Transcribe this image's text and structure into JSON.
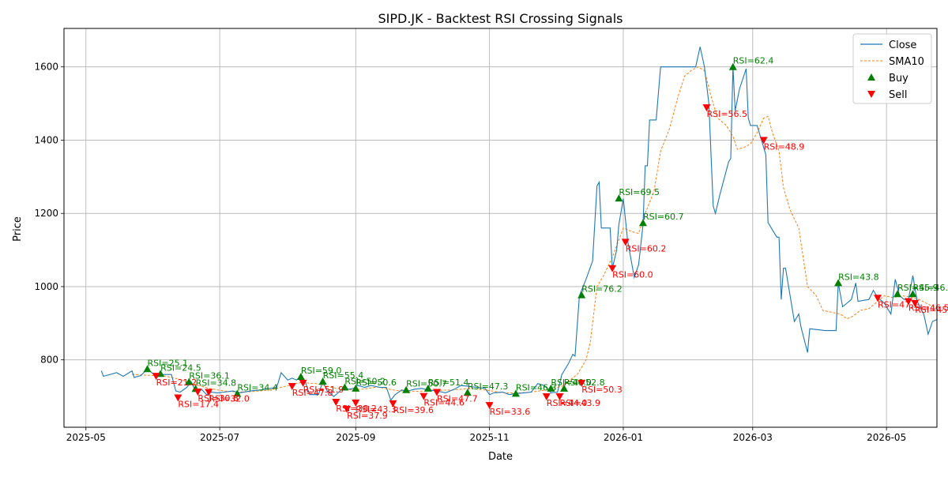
{
  "chart_data": {
    "type": "line",
    "title": "SIPD.JK - Backtest RSI Crossing Signals",
    "xlabel": "Date",
    "ylabel": "Price",
    "x_range": [
      "2025-04-21",
      "2026-05-24"
    ],
    "ylim": [
      616,
      1705
    ],
    "x_ticks": [
      {
        "date": "2025-05-01",
        "label": "2025-05"
      },
      {
        "date": "2025-07-01",
        "label": "2025-07"
      },
      {
        "date": "2025-09-01",
        "label": "2025-09"
      },
      {
        "date": "2025-11-01",
        "label": "2025-11"
      },
      {
        "date": "2026-01-01",
        "label": "2026-01"
      },
      {
        "date": "2026-03-01",
        "label": "2026-03"
      },
      {
        "date": "2026-05-01",
        "label": "2026-05"
      }
    ],
    "y_ticks": [
      800,
      1000,
      1200,
      1400,
      1600
    ],
    "grid": true,
    "legend": {
      "position": "top-right",
      "entries": [
        {
          "key": "close",
          "label": "Close"
        },
        {
          "key": "sma",
          "label": "SMA10"
        },
        {
          "key": "buy",
          "label": "Buy"
        },
        {
          "key": "sell",
          "label": "Sell"
        }
      ]
    },
    "colors": {
      "close": "#1f77b4",
      "sma": "#ff7f0e",
      "buy": "#008000",
      "sell": "#ff0000",
      "grid": "#b0b0b0"
    },
    "close": [
      [
        "2025-05-08",
        770
      ],
      [
        "2025-05-09",
        755
      ],
      [
        "2025-05-15",
        765
      ],
      [
        "2025-05-18",
        755
      ],
      [
        "2025-05-22",
        770
      ],
      [
        "2025-05-23",
        752
      ],
      [
        "2025-05-26",
        757
      ],
      [
        "2025-05-29",
        775
      ],
      [
        "2025-06-02",
        755
      ],
      [
        "2025-06-05",
        760
      ],
      [
        "2025-06-09",
        760
      ],
      [
        "2025-06-11",
        715
      ],
      [
        "2025-06-13",
        712
      ],
      [
        "2025-06-16",
        725
      ],
      [
        "2025-06-18",
        740
      ],
      [
        "2025-06-20",
        715
      ],
      [
        "2025-06-23",
        718
      ],
      [
        "2025-06-25",
        705
      ],
      [
        "2025-06-27",
        712
      ],
      [
        "2025-06-30",
        710
      ],
      [
        "2025-07-03",
        712
      ],
      [
        "2025-07-07",
        715
      ],
      [
        "2025-07-10",
        710
      ],
      [
        "2025-07-15",
        715
      ],
      [
        "2025-07-20",
        718
      ],
      [
        "2025-07-24",
        722
      ],
      [
        "2025-07-27",
        725
      ],
      [
        "2025-07-29",
        765
      ],
      [
        "2025-08-01",
        745
      ],
      [
        "2025-08-03",
        750
      ],
      [
        "2025-08-05",
        745
      ],
      [
        "2025-08-07",
        755
      ],
      [
        "2025-08-09",
        740
      ],
      [
        "2025-08-11",
        705
      ],
      [
        "2025-08-15",
        705
      ],
      [
        "2025-08-17",
        742
      ],
      [
        "2025-08-19",
        715
      ],
      [
        "2025-08-22",
        700
      ],
      [
        "2025-08-24",
        710
      ],
      [
        "2025-08-26",
        722
      ],
      [
        "2025-08-29",
        720
      ],
      [
        "2025-08-31",
        722
      ],
      [
        "2025-09-02",
        730
      ],
      [
        "2025-09-05",
        725
      ],
      [
        "2025-09-08",
        730
      ],
      [
        "2025-09-12",
        725
      ],
      [
        "2025-09-15",
        725
      ],
      [
        "2025-09-17",
        690
      ],
      [
        "2025-09-19",
        705
      ],
      [
        "2025-09-22",
        718
      ],
      [
        "2025-09-24",
        714
      ],
      [
        "2025-09-28",
        720
      ],
      [
        "2025-10-01",
        722
      ],
      [
        "2025-10-04",
        718
      ],
      [
        "2025-10-08",
        715
      ],
      [
        "2025-10-12",
        710
      ],
      [
        "2025-10-16",
        720
      ],
      [
        "2025-10-19",
        730
      ],
      [
        "2025-10-22",
        728
      ],
      [
        "2025-10-26",
        725
      ],
      [
        "2025-10-30",
        722
      ],
      [
        "2025-11-01",
        705
      ],
      [
        "2025-11-03",
        710
      ],
      [
        "2025-11-07",
        712
      ],
      [
        "2025-11-10",
        705
      ],
      [
        "2025-11-13",
        708
      ],
      [
        "2025-11-17",
        710
      ],
      [
        "2025-11-20",
        712
      ],
      [
        "2025-11-23",
        735
      ],
      [
        "2025-11-26",
        730
      ],
      [
        "2025-11-29",
        710
      ],
      [
        "2025-12-02",
        712
      ],
      [
        "2025-12-04",
        760
      ],
      [
        "2025-12-07",
        790
      ],
      [
        "2025-12-09",
        815
      ],
      [
        "2025-12-10",
        810
      ],
      [
        "2025-12-12",
        975
      ],
      [
        "2025-12-15",
        1020
      ],
      [
        "2025-12-18",
        1070
      ],
      [
        "2025-12-20",
        1275
      ],
      [
        "2025-12-21",
        1285
      ],
      [
        "2025-12-22",
        1160
      ],
      [
        "2025-12-26",
        1160
      ],
      [
        "2025-12-27",
        1050
      ],
      [
        "2025-12-29",
        1100
      ],
      [
        "2025-12-30",
        1170
      ],
      [
        "2026-01-01",
        1240
      ],
      [
        "2026-01-03",
        1125
      ],
      [
        "2026-01-06",
        1025
      ],
      [
        "2026-01-08",
        1060
      ],
      [
        "2026-01-10",
        1170
      ],
      [
        "2026-01-11",
        1330
      ],
      [
        "2026-01-12",
        1330
      ],
      [
        "2026-01-13",
        1455
      ],
      [
        "2026-01-16",
        1455
      ],
      [
        "2026-01-18",
        1600
      ],
      [
        "2026-01-22",
        1600
      ],
      [
        "2026-01-27",
        1600
      ],
      [
        "2026-02-01",
        1600
      ],
      [
        "2026-02-03",
        1600
      ],
      [
        "2026-02-05",
        1655
      ],
      [
        "2026-02-07",
        1600
      ],
      [
        "2026-02-09",
        1500
      ],
      [
        "2026-02-11",
        1220
      ],
      [
        "2026-02-12",
        1200
      ],
      [
        "2026-02-14",
        1250
      ],
      [
        "2026-02-18",
        1340
      ],
      [
        "2026-02-19",
        1350
      ],
      [
        "2026-02-20",
        1600
      ],
      [
        "2026-02-21",
        1480
      ],
      [
        "2026-02-23",
        1540
      ],
      [
        "2026-02-26",
        1595
      ],
      [
        "2026-02-27",
        1460
      ],
      [
        "2026-02-28",
        1440
      ],
      [
        "2026-03-03",
        1440
      ],
      [
        "2026-03-05",
        1400
      ],
      [
        "2026-03-07",
        1360
      ],
      [
        "2026-03-08",
        1175
      ],
      [
        "2026-03-12",
        1135
      ],
      [
        "2026-03-13",
        1135
      ],
      [
        "2026-03-14",
        965
      ],
      [
        "2026-03-15",
        1050
      ],
      [
        "2026-03-16",
        1050
      ],
      [
        "2026-03-20",
        905
      ],
      [
        "2026-03-22",
        925
      ],
      [
        "2026-03-23",
        890
      ],
      [
        "2026-03-26",
        820
      ],
      [
        "2026-03-27",
        885
      ],
      [
        "2026-04-03",
        880
      ],
      [
        "2026-04-08",
        880
      ],
      [
        "2026-04-09",
        1010
      ],
      [
        "2026-04-11",
        945
      ],
      [
        "2026-04-15",
        965
      ],
      [
        "2026-04-17",
        1010
      ],
      [
        "2026-04-18",
        960
      ],
      [
        "2026-04-23",
        965
      ],
      [
        "2026-04-25",
        990
      ],
      [
        "2026-04-27",
        970
      ],
      [
        "2026-04-30",
        955
      ],
      [
        "2026-05-03",
        925
      ],
      [
        "2026-05-05",
        1020
      ],
      [
        "2026-05-07",
        975
      ],
      [
        "2026-05-09",
        965
      ],
      [
        "2026-05-11",
        965
      ],
      [
        "2026-05-13",
        1030
      ],
      [
        "2026-05-15",
        960
      ],
      [
        "2026-05-18",
        925
      ],
      [
        "2026-05-20",
        870
      ],
      [
        "2026-05-22",
        905
      ],
      [
        "2026-05-24",
        910
      ],
      [
        "2026-05-27",
        912
      ],
      [
        "2026-05-30",
        915
      ],
      [
        "2026-06-01",
        892
      ],
      [
        "2026-06-03",
        885
      ],
      [
        "2026-06-05",
        890
      ]
    ],
    "sma10": [
      [
        "2025-05-22",
        760
      ],
      [
        "2025-05-29",
        758
      ],
      [
        "2025-06-05",
        757
      ],
      [
        "2025-06-12",
        748
      ],
      [
        "2025-06-19",
        735
      ],
      [
        "2025-06-26",
        722
      ],
      [
        "2025-07-03",
        715
      ],
      [
        "2025-07-10",
        712
      ],
      [
        "2025-07-17",
        714
      ],
      [
        "2025-07-24",
        718
      ],
      [
        "2025-07-31",
        728
      ],
      [
        "2025-08-07",
        738
      ],
      [
        "2025-08-14",
        735
      ],
      [
        "2025-08-21",
        725
      ],
      [
        "2025-08-28",
        718
      ],
      [
        "2025-09-04",
        720
      ],
      [
        "2025-09-11",
        726
      ],
      [
        "2025-09-18",
        718
      ],
      [
        "2025-09-25",
        713
      ],
      [
        "2025-10-02",
        715
      ],
      [
        "2025-10-09",
        717
      ],
      [
        "2025-10-16",
        718
      ],
      [
        "2025-10-23",
        722
      ],
      [
        "2025-10-30",
        718
      ],
      [
        "2025-11-06",
        711
      ],
      [
        "2025-11-13",
        709
      ],
      [
        "2025-11-20",
        712
      ],
      [
        "2025-11-27",
        718
      ],
      [
        "2025-12-04",
        728
      ],
      [
        "2025-12-11",
        760
      ],
      [
        "2025-12-15",
        800
      ],
      [
        "2025-12-17",
        850
      ],
      [
        "2025-12-20",
        1000
      ],
      [
        "2025-12-23",
        1030
      ],
      [
        "2025-12-27",
        1080
      ],
      [
        "2026-01-01",
        1160
      ],
      [
        "2026-01-05",
        1150
      ],
      [
        "2026-01-08",
        1145
      ],
      [
        "2026-01-11",
        1200
      ],
      [
        "2026-01-15",
        1260
      ],
      [
        "2026-01-18",
        1370
      ],
      [
        "2026-01-22",
        1430
      ],
      [
        "2026-01-26",
        1520
      ],
      [
        "2026-01-29",
        1575
      ],
      [
        "2026-02-01",
        1590
      ],
      [
        "2026-02-04",
        1600
      ],
      [
        "2026-02-07",
        1590
      ],
      [
        "2026-02-10",
        1520
      ],
      [
        "2026-02-13",
        1460
      ],
      [
        "2026-02-17",
        1440
      ],
      [
        "2026-02-20",
        1410
      ],
      [
        "2026-02-22",
        1375
      ],
      [
        "2026-02-25",
        1380
      ],
      [
        "2026-02-28",
        1390
      ],
      [
        "2026-03-03",
        1420
      ],
      [
        "2026-03-06",
        1460
      ],
      [
        "2026-03-08",
        1465
      ],
      [
        "2026-03-10",
        1420
      ],
      [
        "2026-03-13",
        1370
      ],
      [
        "2026-03-15",
        1270
      ],
      [
        "2026-03-18",
        1210
      ],
      [
        "2026-03-22",
        1160
      ],
      [
        "2026-03-26",
        1000
      ],
      [
        "2026-03-30",
        975
      ],
      [
        "2026-04-02",
        935
      ],
      [
        "2026-04-06",
        930
      ],
      [
        "2026-04-10",
        925
      ],
      [
        "2026-04-13",
        912
      ],
      [
        "2026-04-16",
        920
      ],
      [
        "2026-04-19",
        935
      ],
      [
        "2026-04-23",
        940
      ],
      [
        "2026-04-27",
        960
      ],
      [
        "2026-04-30",
        975
      ],
      [
        "2026-05-04",
        970
      ],
      [
        "2026-05-08",
        975
      ],
      [
        "2026-05-12",
        972
      ],
      [
        "2026-05-16",
        965
      ],
      [
        "2026-05-20",
        952
      ],
      [
        "2026-05-24",
        940
      ],
      [
        "2026-05-28",
        935
      ],
      [
        "2026-06-01",
        920
      ],
      [
        "2026-06-05",
        905
      ]
    ],
    "buy_signals": [
      {
        "date": "2025-05-29",
        "price": 775,
        "label": "RSI=25.1"
      },
      {
        "date": "2025-06-04",
        "price": 762,
        "label": "RSI=24.5"
      },
      {
        "date": "2025-06-17",
        "price": 740,
        "label": "RSI=36.1"
      },
      {
        "date": "2025-06-20",
        "price": 721,
        "label": "RSI=34.8"
      },
      {
        "date": "2025-07-09",
        "price": 708,
        "label": "RSI=34.4"
      },
      {
        "date": "2025-08-07",
        "price": 754,
        "label": "RSI=59.0"
      },
      {
        "date": "2025-08-17",
        "price": 741,
        "label": "RSI=55.4"
      },
      {
        "date": "2025-08-27",
        "price": 725,
        "label": "RSI=50.2"
      },
      {
        "date": "2025-09-01",
        "price": 722,
        "label": "RSI=50.6"
      },
      {
        "date": "2025-09-24",
        "price": 718,
        "label": "RSI=50.7"
      },
      {
        "date": "2025-10-04",
        "price": 722,
        "label": "RSI=51.4"
      },
      {
        "date": "2025-10-22",
        "price": 711,
        "label": "RSI=47.3"
      },
      {
        "date": "2025-11-13",
        "price": 708,
        "label": "RSI=46.3"
      },
      {
        "date": "2025-11-29",
        "price": 722,
        "label": "RSI=46.0"
      },
      {
        "date": "2025-12-05",
        "price": 722,
        "label": "RSI=52.8"
      },
      {
        "date": "2025-12-13",
        "price": 977,
        "label": "RSI=76.2"
      },
      {
        "date": "2025-12-30",
        "price": 1241,
        "label": "RSI=69.5"
      },
      {
        "date": "2026-01-10",
        "price": 1174,
        "label": "RSI=60.7"
      },
      {
        "date": "2026-02-20",
        "price": 1600,
        "label": "RSI=62.4"
      },
      {
        "date": "2026-04-09",
        "price": 1010,
        "label": "RSI=43.8"
      },
      {
        "date": "2026-05-06",
        "price": 980,
        "label": "RSI=45.9"
      },
      {
        "date": "2026-05-13",
        "price": 980,
        "label": "RSI=46.7"
      }
    ],
    "sell_signals": [
      {
        "date": "2025-06-02",
        "price": 756,
        "label": "RSI=21.2"
      },
      {
        "date": "2025-06-12",
        "price": 697,
        "label": "RSI=17.4"
      },
      {
        "date": "2025-06-21",
        "price": 713,
        "label": "RSI=30.8"
      },
      {
        "date": "2025-06-26",
        "price": 712,
        "label": "RSI=32.0"
      },
      {
        "date": "2025-08-03",
        "price": 728,
        "label": "RSI=47.8"
      },
      {
        "date": "2025-08-08",
        "price": 737,
        "label": "RSI=51.9"
      },
      {
        "date": "2025-08-23",
        "price": 685,
        "label": "RSI=38.2"
      },
      {
        "date": "2025-08-28",
        "price": 666,
        "label": "RSI=37.9"
      },
      {
        "date": "2025-09-01",
        "price": 683,
        "label": "RSI=43.3"
      },
      {
        "date": "2025-09-18",
        "price": 681,
        "label": "RSI=39.6"
      },
      {
        "date": "2025-10-02",
        "price": 701,
        "label": "RSI=44.6"
      },
      {
        "date": "2025-10-08",
        "price": 712,
        "label": "RSI=47.7"
      },
      {
        "date": "2025-11-01",
        "price": 676,
        "label": "RSI=33.6"
      },
      {
        "date": "2025-11-27",
        "price": 700,
        "label": "RSI=44.0"
      },
      {
        "date": "2025-12-03",
        "price": 700,
        "label": "RSI=43.9"
      },
      {
        "date": "2025-12-13",
        "price": 737,
        "label": "RSI=50.3"
      },
      {
        "date": "2025-12-27",
        "price": 1050,
        "label": "RSI=60.0"
      },
      {
        "date": "2026-01-02",
        "price": 1122,
        "label": "RSI=60.2"
      },
      {
        "date": "2026-02-08",
        "price": 1489,
        "label": "RSI=56.5"
      },
      {
        "date": "2026-03-06",
        "price": 1400,
        "label": "RSI=48.9"
      },
      {
        "date": "2026-04-27",
        "price": 969,
        "label": "RSI=47.1"
      },
      {
        "date": "2026-05-11",
        "price": 960,
        "label": "RSI=46.5"
      },
      {
        "date": "2026-05-14",
        "price": 955,
        "label": "RSI=45.2"
      }
    ]
  }
}
